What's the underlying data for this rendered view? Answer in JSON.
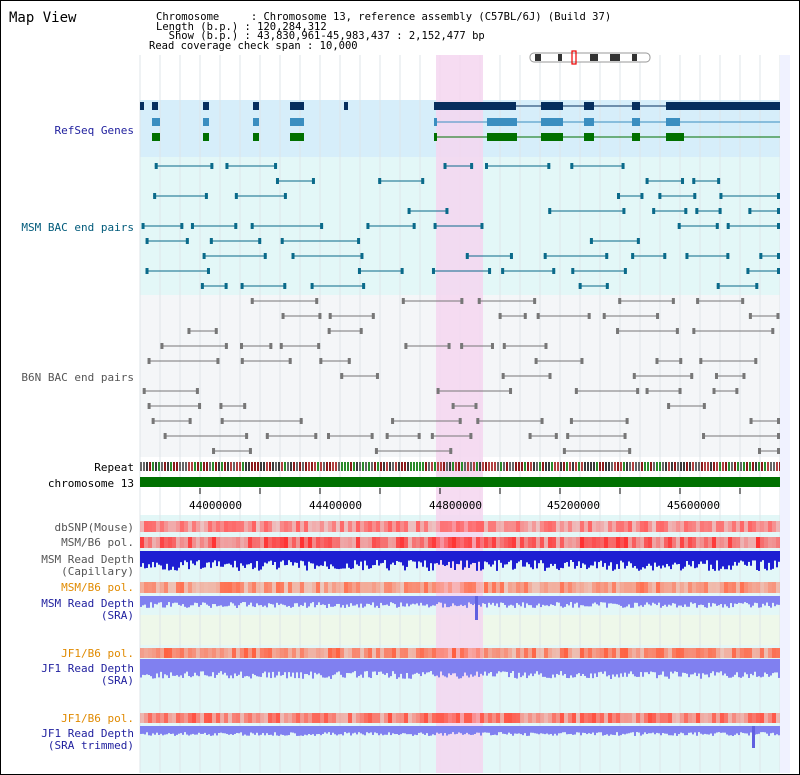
{
  "title": "Map View",
  "header": {
    "chromosome": "Chromosome     : Chromosome 13, reference assembly (C57BL/6J) (Build 37)",
    "length": "Length (b.p.) : 120,284,312",
    "show": "  Show (b.p.) : 43,830,961-45,983,437 : 2,152,477 bp",
    "coverage": "Read coverage check span : 10,000"
  },
  "labels": {
    "refseq": "RefSeq Genes",
    "msm_bac": "MSM BAC end pairs",
    "b6n_bac": "B6N BAC end pairs",
    "repeat": "Repeat",
    "chromosome": "chromosome 13",
    "dbsnp": "dbSNP(Mouse)",
    "msm_b6_pol_1": "MSM/B6 pol.",
    "msm_read_depth_cap_1": "MSM Read Depth",
    "msm_read_depth_cap_2": "(Capillary)",
    "msm_b6_pol_2": "MSM/B6 pol.",
    "msm_read_depth_sra_1": "MSM Read Depth",
    "msm_read_depth_sra_2": "(SRA)",
    "jf1_b6_pol_1": "JF1/B6 pol.",
    "jf1_read_depth_sra_1": "JF1 Read Depth",
    "jf1_read_depth_sra_2": "(SRA)",
    "jf1_b6_pol_2": "JF1/B6 pol.",
    "jf1_read_depth_trim_1": "JF1 Read Depth",
    "jf1_read_depth_trim_2": "(SRA trimmed)"
  },
  "ruler_ticks": [
    "44000000",
    "44400000",
    "44800000",
    "45200000",
    "45600000"
  ],
  "colors": {
    "label_blue": "#1f1f9e",
    "label_teal": "#005a7a",
    "label_orange": "#e08a00",
    "highlight": "#f5d6f0",
    "refseq_bg": "#d6eefa",
    "bac_msm_bg": "#e3f7f7",
    "chromosome_bar": "#007000",
    "gene_dark": "#062e5e",
    "gene_mid": "#3a8ec0",
    "gene_green": "#007000",
    "depth_blue": "#1e1ed2",
    "depth_sra": "#8080f0",
    "pol_red": "#ff3030"
  }
}
